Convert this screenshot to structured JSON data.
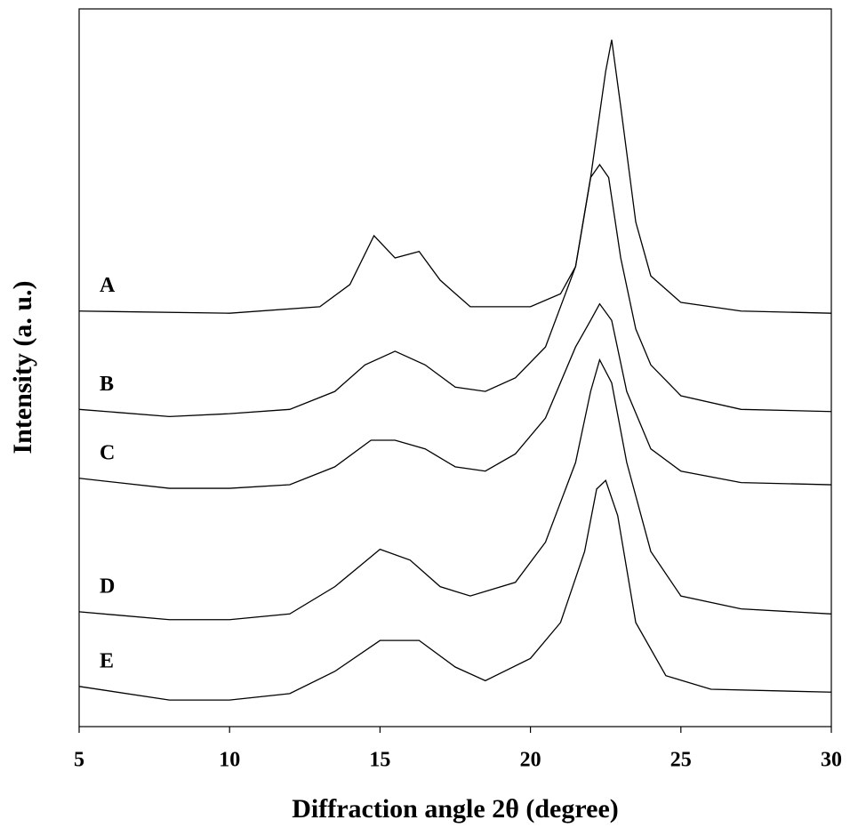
{
  "chart_data": {
    "type": "line",
    "xlabel": "Diffraction angle 2θ  (degree)",
    "ylabel": "Intensity (a. u.)",
    "xlim": [
      5,
      30
    ],
    "xticks": [
      5,
      10,
      15,
      20,
      25,
      30
    ],
    "ylim": [
      0,
      100
    ],
    "color": "#000000",
    "series": [
      {
        "name": "A",
        "x": [
          5,
          10,
          13,
          14,
          14.8,
          15.5,
          16.3,
          17,
          18,
          20,
          21,
          21.5,
          22,
          22.5,
          22.7,
          23,
          23.5,
          24,
          25,
          27,
          30
        ],
        "values": [
          57.9,
          57.6,
          58.5,
          61.6,
          68.4,
          65.3,
          66.2,
          62.2,
          58.5,
          58.5,
          60.3,
          64.1,
          76.5,
          91.3,
          95.7,
          86.4,
          70.3,
          62.8,
          59.1,
          57.9,
          57.6
        ]
      },
      {
        "name": "B",
        "x": [
          5,
          8,
          10,
          12,
          13.5,
          14.5,
          15.5,
          16.5,
          17.5,
          18.5,
          19.5,
          20.5,
          21.5,
          22,
          22.3,
          22.6,
          23,
          23.5,
          24,
          25,
          27,
          30
        ],
        "values": [
          44.2,
          43.2,
          43.6,
          44.2,
          46.7,
          50.4,
          52.3,
          50.4,
          47.3,
          46.7,
          48.6,
          52.9,
          64.1,
          76.5,
          78.3,
          76.5,
          65.3,
          55.4,
          50.4,
          46.1,
          44.2,
          43.9
        ]
      },
      {
        "name": "C",
        "x": [
          5,
          8,
          10,
          12,
          13.5,
          14.7,
          15.5,
          16.5,
          17.5,
          18.5,
          19.5,
          20.5,
          21.5,
          22,
          22.3,
          22.7,
          23.2,
          24,
          25,
          27,
          30
        ],
        "values": [
          34.6,
          33.2,
          33.2,
          33.7,
          36.2,
          39.9,
          39.9,
          38.7,
          36.2,
          35.6,
          38.0,
          43.0,
          52.9,
          56.6,
          58.9,
          56.6,
          46.7,
          38.7,
          35.6,
          34.0,
          33.7
        ]
      },
      {
        "name": "D",
        "x": [
          5,
          8,
          10,
          12,
          13.5,
          15,
          16,
          17,
          18,
          19.5,
          20.5,
          21.5,
          22,
          22.3,
          22.7,
          23.2,
          24,
          25,
          27,
          30
        ],
        "values": [
          16.0,
          14.9,
          14.9,
          15.7,
          19.5,
          24.7,
          23.2,
          19.5,
          18.2,
          20.1,
          25.7,
          36.8,
          46.7,
          51.1,
          47.9,
          36.8,
          24.4,
          18.2,
          16.4,
          15.7
        ]
      },
      {
        "name": "E",
        "x": [
          5,
          8,
          10,
          12,
          13.5,
          15,
          16.3,
          17.5,
          18.5,
          20,
          21,
          21.8,
          22.2,
          22.5,
          22.9,
          23.5,
          24.5,
          26,
          30
        ],
        "values": [
          5.6,
          3.7,
          3.7,
          4.6,
          7.7,
          12.0,
          12.0,
          8.3,
          6.4,
          9.5,
          14.5,
          24.4,
          33.1,
          34.3,
          29.4,
          14.5,
          7.1,
          5.2,
          4.8
        ]
      }
    ]
  }
}
